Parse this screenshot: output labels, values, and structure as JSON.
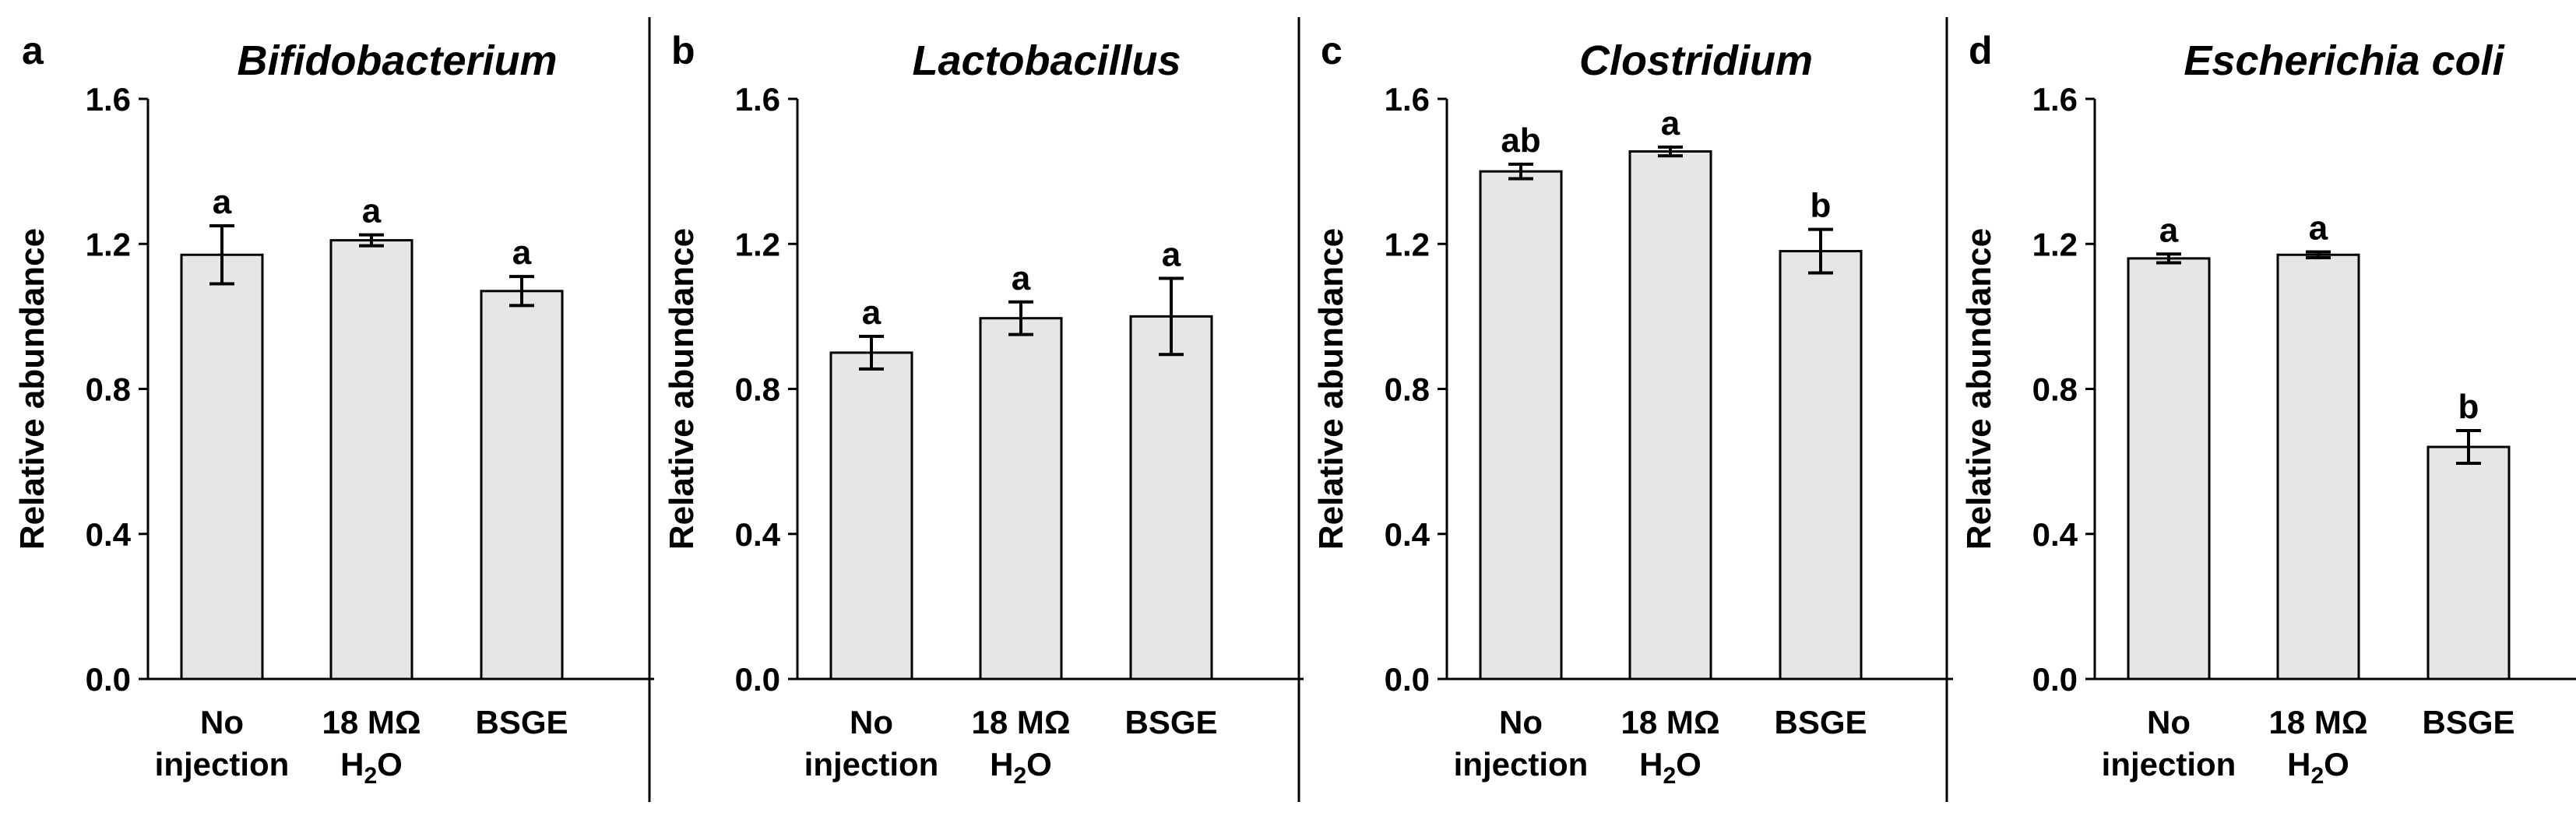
{
  "chart_data": [
    {
      "type": "bar",
      "panel": "a",
      "title": "Bifidobacterium",
      "ylabel": "Relative abundance",
      "xlabel": "",
      "ylim": [
        0,
        1.6
      ],
      "yticks": [
        "0.0",
        "0.4",
        "0.8",
        "1.2",
        "1.6"
      ],
      "categories": [
        {
          "line1": "No",
          "line2": "injection"
        },
        {
          "line1": "18 MΩ",
          "line2": "H",
          "line2_sub": "2",
          "line2_tail": "O"
        },
        {
          "line1": "BSGE",
          "line2": ""
        }
      ],
      "values": [
        1.17,
        1.21,
        1.07
      ],
      "errors": [
        0.08,
        0.015,
        0.04
      ],
      "significance": [
        "a",
        "a",
        "a"
      ]
    },
    {
      "type": "bar",
      "panel": "b",
      "title": "Lactobacillus",
      "ylabel": "Relative abundance",
      "xlabel": "",
      "ylim": [
        0,
        1.6
      ],
      "yticks": [
        "0.0",
        "0.4",
        "0.8",
        "1.2",
        "1.6"
      ],
      "categories": [
        {
          "line1": "No",
          "line2": "injection"
        },
        {
          "line1": "18 MΩ",
          "line2": "H",
          "line2_sub": "2",
          "line2_tail": "O"
        },
        {
          "line1": "BSGE",
          "line2": ""
        }
      ],
      "values": [
        0.9,
        0.995,
        1.0
      ],
      "errors": [
        0.045,
        0.045,
        0.105
      ],
      "significance": [
        "a",
        "a",
        "a"
      ]
    },
    {
      "type": "bar",
      "panel": "c",
      "title": "Clostridium",
      "ylabel": "Relative abundance",
      "xlabel": "",
      "ylim": [
        0,
        1.6
      ],
      "yticks": [
        "0.0",
        "0.4",
        "0.8",
        "1.2",
        "1.6"
      ],
      "categories": [
        {
          "line1": "No",
          "line2": "injection"
        },
        {
          "line1": "18 MΩ",
          "line2": "H",
          "line2_sub": "2",
          "line2_tail": "O"
        },
        {
          "line1": "BSGE",
          "line2": ""
        }
      ],
      "values": [
        1.4,
        1.455,
        1.18
      ],
      "errors": [
        0.02,
        0.012,
        0.06
      ],
      "significance": [
        "ab",
        "a",
        "b"
      ]
    },
    {
      "type": "bar",
      "panel": "d",
      "title": "Escherichia coli",
      "ylabel": "Relative abundance",
      "xlabel": "",
      "ylim": [
        0,
        1.6
      ],
      "yticks": [
        "0.0",
        "0.4",
        "0.8",
        "1.2",
        "1.6"
      ],
      "categories": [
        {
          "line1": "No",
          "line2": "injection"
        },
        {
          "line1": "18 MΩ",
          "line2": "H",
          "line2_sub": "2",
          "line2_tail": "O"
        },
        {
          "line1": "BSGE",
          "line2": ""
        }
      ],
      "values": [
        1.16,
        1.17,
        0.64
      ],
      "errors": [
        0.012,
        0.008,
        0.045
      ],
      "significance": [
        "a",
        "a",
        "b"
      ]
    }
  ],
  "style": {
    "bar_fill": "#e6e6e6",
    "bar_stroke": "#000000",
    "axis_color": "#000000",
    "divider_color": "#000000"
  }
}
